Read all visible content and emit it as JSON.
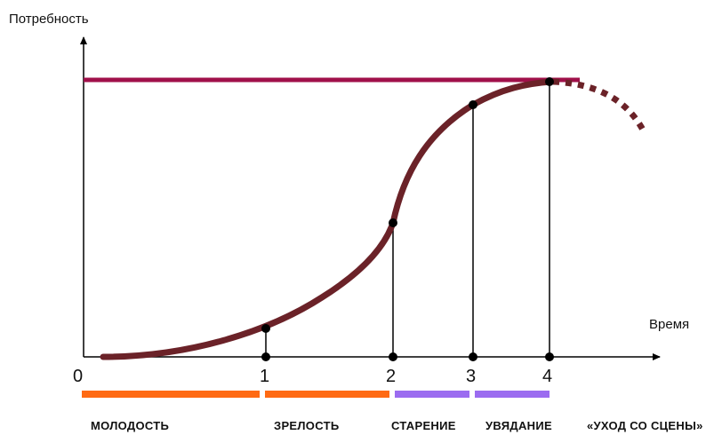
{
  "axes": {
    "y_label": "Потребность",
    "x_label": "Время"
  },
  "ticks": [
    "0",
    "1",
    "2",
    "3",
    "4"
  ],
  "stages": [
    {
      "label": "МОЛОДОСТЬ",
      "color": "#ff6a13"
    },
    {
      "label": "ЗРЕЛОСТЬ",
      "color": "#ff6a13"
    },
    {
      "label": "СТАРЕНИЕ",
      "color": "#9b6cf0"
    },
    {
      "label": "УВЯДАНИЕ",
      "color": "#9b6cf0"
    },
    {
      "label": "«УХОД СО СЦЕНЫ»",
      "color": ""
    }
  ],
  "colors": {
    "curve": "#6b2228",
    "saturation_line": "#a0104a",
    "axis": "#000000"
  }
}
